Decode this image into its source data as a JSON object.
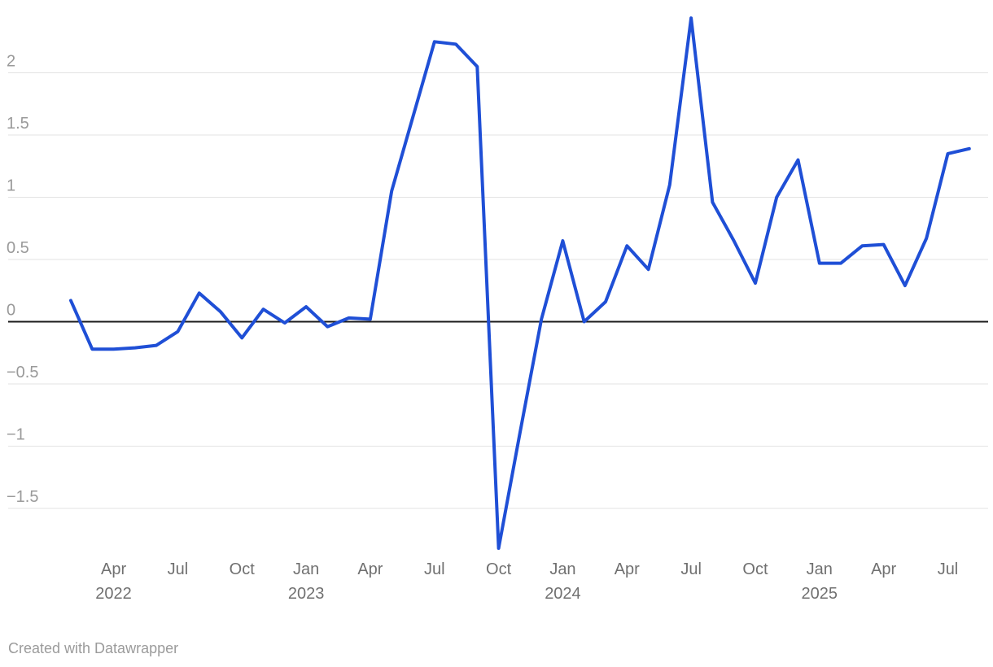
{
  "chart_data": {
    "type": "line",
    "title": "",
    "xlabel": "",
    "ylabel": "",
    "x": [
      "Feb 2022",
      "Mar 2022",
      "Apr 2022",
      "May 2022",
      "Jun 2022",
      "Jul 2022",
      "Aug 2022",
      "Sep 2022",
      "Oct 2022",
      "Nov 2022",
      "Dec 2022",
      "Jan 2023",
      "Feb 2023",
      "Mar 2023",
      "Apr 2023",
      "May 2023",
      "Jun 2023",
      "Jul 2023",
      "Aug 2023",
      "Sep 2023",
      "Oct 2023",
      "Nov 2023",
      "Dec 2023",
      "Jan 2024",
      "Feb 2024",
      "Mar 2024",
      "Apr 2024",
      "May 2024",
      "Jun 2024",
      "Jul 2024",
      "Aug 2024",
      "Sep 2024",
      "Oct 2024",
      "Nov 2024",
      "Dec 2024",
      "Jan 2025",
      "Feb 2025",
      "Mar 2025",
      "Apr 2025",
      "May 2025",
      "Jun 2025",
      "Jul 2025",
      "Aug 2025"
    ],
    "values": [
      0.17,
      -0.22,
      -0.22,
      -0.21,
      -0.19,
      -0.08,
      0.23,
      0.08,
      -0.13,
      0.1,
      -0.01,
      0.12,
      -0.04,
      0.03,
      0.02,
      1.05,
      1.65,
      2.25,
      2.23,
      2.05,
      -1.82,
      -0.89,
      0.02,
      0.65,
      0.0,
      0.16,
      0.61,
      0.42,
      1.1,
      2.44,
      0.96,
      0.65,
      0.31,
      1.0,
      1.3,
      0.47,
      0.47,
      0.61,
      0.62,
      0.29,
      0.67,
      1.35,
      1.39
    ],
    "y_ticks": [
      {
        "value": 2,
        "label": "2"
      },
      {
        "value": 1.5,
        "label": "1.5"
      },
      {
        "value": 1,
        "label": "1"
      },
      {
        "value": 0.5,
        "label": "0.5"
      },
      {
        "value": 0,
        "label": "0"
      },
      {
        "value": -0.5,
        "label": "−0.5"
      },
      {
        "value": -1,
        "label": "−1"
      },
      {
        "value": -1.5,
        "label": "−1.5"
      }
    ],
    "x_ticks": [
      {
        "month_index": 2,
        "label": "Apr",
        "year": "2022"
      },
      {
        "month_index": 5,
        "label": "Jul",
        "year": ""
      },
      {
        "month_index": 8,
        "label": "Oct",
        "year": ""
      },
      {
        "month_index": 11,
        "label": "Jan",
        "year": "2023"
      },
      {
        "month_index": 14,
        "label": "Apr",
        "year": ""
      },
      {
        "month_index": 17,
        "label": "Jul",
        "year": ""
      },
      {
        "month_index": 20,
        "label": "Oct",
        "year": ""
      },
      {
        "month_index": 23,
        "label": "Jan",
        "year": "2024"
      },
      {
        "month_index": 26,
        "label": "Apr",
        "year": ""
      },
      {
        "month_index": 29,
        "label": "Jul",
        "year": ""
      },
      {
        "month_index": 32,
        "label": "Oct",
        "year": ""
      },
      {
        "month_index": 35,
        "label": "Jan",
        "year": "2025"
      },
      {
        "month_index": 38,
        "label": "Apr",
        "year": ""
      },
      {
        "month_index": 41,
        "label": "Jul",
        "year": ""
      }
    ],
    "ylim": [
      -1.9,
      2.5
    ],
    "grid": "horizontal",
    "zero_line": true,
    "legend": "none",
    "line_color": "#1f4fd6",
    "grid_color": "#e3e3e3",
    "zero_line_color": "#1a1a1a"
  },
  "footer": {
    "attribution": "Created with Datawrapper"
  }
}
